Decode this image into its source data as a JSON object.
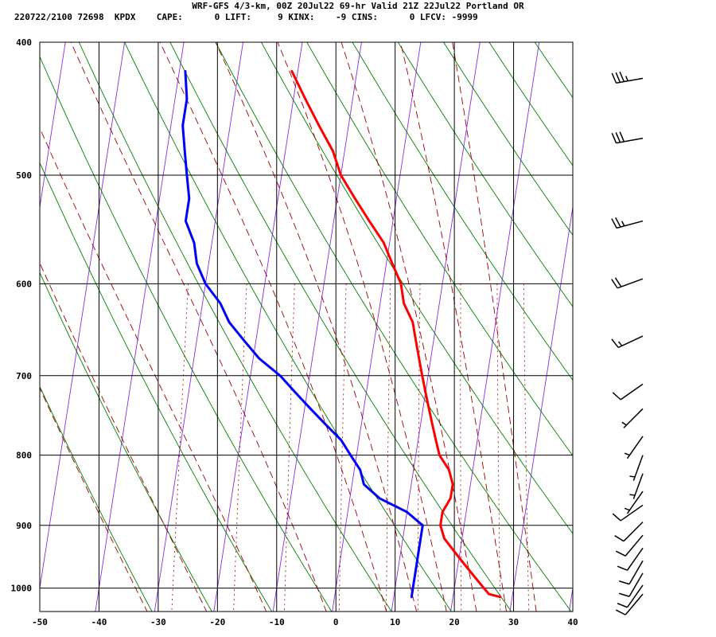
{
  "header": {
    "title": "WRF-GFS 4/3-km, 00Z 20Jul22 69-hr Valid 21Z 22Jul22 Portland OR",
    "stats": "220722/2100 72698  KPDX    CAPE:      0 LIFT:     9 KINX:    -9 CINS:      0 LFCV: -9999"
  },
  "chart_data": {
    "type": "line",
    "xlim": [
      -50,
      40
    ],
    "ylim": [
      1040,
      400
    ],
    "y_scale": "log",
    "x_ticks": [
      -50,
      -40,
      -30,
      -20,
      -10,
      0,
      10,
      20,
      30,
      40
    ],
    "x_tick_labels": [
      "-50",
      "-40",
      "-30",
      "-20",
      "-10",
      "0",
      "10",
      "20",
      "30",
      "40"
    ],
    "y_ticks": [
      400,
      500,
      600,
      700,
      800,
      900,
      1000
    ],
    "y_tick_labels": [
      "400",
      "500",
      "600",
      "700",
      "800",
      "900",
      "1000"
    ],
    "grid": true,
    "skew_deg_per_decade": 36,
    "series": [
      {
        "role": "temperature",
        "color": "#ff0000",
        "points": [
          [
            -21,
            420
          ],
          [
            -18,
            440
          ],
          [
            -15,
            460
          ],
          [
            -12,
            480
          ],
          [
            -10,
            500
          ],
          [
            -7,
            520
          ],
          [
            -4,
            540
          ],
          [
            -1,
            560
          ],
          [
            1,
            580
          ],
          [
            3,
            600
          ],
          [
            4,
            620
          ],
          [
            6,
            640
          ],
          [
            7,
            660
          ],
          [
            8,
            680
          ],
          [
            9,
            700
          ],
          [
            10,
            720
          ],
          [
            11,
            740
          ],
          [
            12,
            760
          ],
          [
            13,
            780
          ],
          [
            14,
            800
          ],
          [
            16,
            820
          ],
          [
            17,
            840
          ],
          [
            17,
            860
          ],
          [
            16,
            880
          ],
          [
            16,
            900
          ],
          [
            17,
            920
          ],
          [
            19,
            940
          ],
          [
            21,
            960
          ],
          [
            23,
            980
          ],
          [
            25,
            1000
          ],
          [
            26,
            1010
          ],
          [
            28,
            1015
          ]
        ]
      },
      {
        "role": "dewpoint",
        "color": "#0000ff",
        "points": [
          [
            -39,
            420
          ],
          [
            -38,
            440
          ],
          [
            -38,
            460
          ],
          [
            -37,
            480
          ],
          [
            -36,
            500
          ],
          [
            -35,
            520
          ],
          [
            -35,
            540
          ],
          [
            -33,
            560
          ],
          [
            -32,
            580
          ],
          [
            -30,
            600
          ],
          [
            -27,
            620
          ],
          [
            -25,
            640
          ],
          [
            -22,
            660
          ],
          [
            -19,
            680
          ],
          [
            -15,
            700
          ],
          [
            -12,
            720
          ],
          [
            -9,
            740
          ],
          [
            -6,
            760
          ],
          [
            -3,
            780
          ],
          [
            -1,
            800
          ],
          [
            1,
            820
          ],
          [
            2,
            840
          ],
          [
            5,
            860
          ],
          [
            10,
            880
          ],
          [
            13,
            900
          ],
          [
            13,
            920
          ],
          [
            13,
            940
          ],
          [
            13,
            960
          ],
          [
            13,
            980
          ],
          [
            13,
            1000
          ],
          [
            13,
            1015
          ]
        ]
      }
    ],
    "isotherms": [
      -130,
      -120,
      -110,
      -100,
      -90,
      -80,
      -70,
      -60,
      -50,
      -40,
      -30,
      -20,
      -10,
      0,
      10,
      20,
      30,
      40
    ],
    "dry_adiabats_theta_K": [
      240,
      250,
      260,
      270,
      280,
      290,
      300,
      310,
      320,
      330,
      340,
      350,
      360,
      370,
      380,
      390
    ],
    "moist_adiabats_C": [
      -30,
      -20,
      -10,
      0,
      10,
      15,
      20,
      25,
      30,
      35
    ],
    "mixing_ratios_gkg": [
      0.4,
      1,
      2,
      4,
      7,
      10,
      16,
      24,
      32
    ],
    "wind_barbs": [
      {
        "p": 425,
        "dir": 260,
        "spd": 35
      },
      {
        "p": 470,
        "dir": 260,
        "spd": 30
      },
      {
        "p": 540,
        "dir": 255,
        "spd": 25
      },
      {
        "p": 595,
        "dir": 250,
        "spd": 20
      },
      {
        "p": 655,
        "dir": 245,
        "spd": 15
      },
      {
        "p": 710,
        "dir": 235,
        "spd": 10
      },
      {
        "p": 740,
        "dir": 225,
        "spd": 5
      },
      {
        "p": 775,
        "dir": 215,
        "spd": 5
      },
      {
        "p": 800,
        "dir": 200,
        "spd": 5
      },
      {
        "p": 825,
        "dir": 200,
        "spd": 5
      },
      {
        "p": 850,
        "dir": 215,
        "spd": 5
      },
      {
        "p": 870,
        "dir": 235,
        "spd": 10
      },
      {
        "p": 895,
        "dir": 225,
        "spd": 10
      },
      {
        "p": 915,
        "dir": 220,
        "spd": 10
      },
      {
        "p": 935,
        "dir": 215,
        "spd": 10
      },
      {
        "p": 955,
        "dir": 210,
        "spd": 10
      },
      {
        "p": 975,
        "dir": 210,
        "spd": 10
      },
      {
        "p": 995,
        "dir": 215,
        "spd": 10
      },
      {
        "p": 1010,
        "dir": 220,
        "spd": 10
      }
    ],
    "colors": {
      "isotherm": "#8a2be2",
      "dry_adiabat": "#008000",
      "moist_adiabat": "#a00000",
      "grid": "#000000",
      "barb": "#000000"
    }
  }
}
